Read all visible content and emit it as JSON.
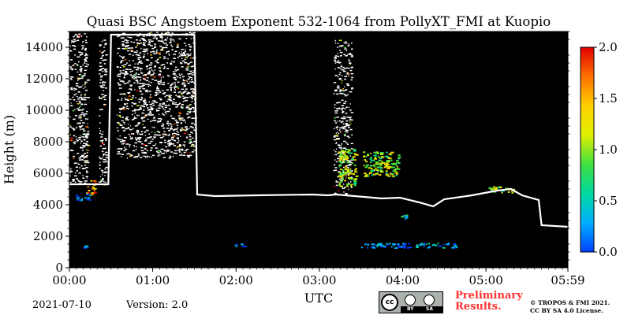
{
  "chart_data": {
    "type": "heatmap",
    "title": "Quasi BSC Angstoem Exponent 532-1064 from PollyXT_FMI at Kuopio",
    "xlabel": "UTC",
    "ylabel": "Height (m)",
    "xlim": [
      "00:00",
      "05:59"
    ],
    "xlim_minutes": [
      0,
      359
    ],
    "xticks": [
      "00:00",
      "01:00",
      "02:00",
      "03:00",
      "04:00",
      "05:00",
      "05:59"
    ],
    "ylim": [
      0,
      15000
    ],
    "yticks": [
      "0",
      "2000",
      "4000",
      "6000",
      "8000",
      "10000",
      "12000",
      "14000"
    ],
    "colorbar": {
      "range": [
        0.0,
        2.0
      ],
      "ticks": [
        "0.0",
        "0.5",
        "1.0",
        "1.5",
        "2.0"
      ],
      "colormap": [
        "#0040ff",
        "#00b0ff",
        "#00d8a0",
        "#40e040",
        "#e0f000",
        "#ffd000",
        "#ff7000",
        "#e00000"
      ]
    },
    "background_color": "#000000",
    "cloud_color": "#ffffff",
    "cloud_top_profile": [
      {
        "t": 0,
        "h": 5300
      },
      {
        "t": 28,
        "h": 5300
      },
      {
        "t": 30,
        "h": 14800
      },
      {
        "t": 90,
        "h": 14800
      },
      {
        "t": 92,
        "h": 4650
      },
      {
        "t": 105,
        "h": 4550
      },
      {
        "t": 135,
        "h": 4600
      },
      {
        "t": 175,
        "h": 4650
      },
      {
        "t": 186,
        "h": 4600
      },
      {
        "t": 192,
        "h": 4650
      },
      {
        "t": 212,
        "h": 4500
      },
      {
        "t": 225,
        "h": 4400
      },
      {
        "t": 238,
        "h": 4450
      },
      {
        "t": 252,
        "h": 4150
      },
      {
        "t": 262,
        "h": 3900
      },
      {
        "t": 270,
        "h": 4350
      },
      {
        "t": 290,
        "h": 4600
      },
      {
        "t": 308,
        "h": 4900
      },
      {
        "t": 318,
        "h": 5000
      },
      {
        "t": 326,
        "h": 4600
      },
      {
        "t": 338,
        "h": 4300
      },
      {
        "t": 340,
        "h": 2700
      },
      {
        "t": 359,
        "h": 2600
      }
    ],
    "cirrus_columns": [
      {
        "t0": 0,
        "t1": 13,
        "h0": 5300,
        "h1": 14900
      },
      {
        "t0": 21,
        "t1": 26,
        "h0": 5300,
        "h1": 14500
      },
      {
        "t0": 34,
        "t1": 90,
        "h0": 7000,
        "h1": 15000
      },
      {
        "t0": 190,
        "t1": 203,
        "h0": 4700,
        "h1": 14500
      }
    ],
    "colored_patches": [
      {
        "t0": 193,
        "t1": 206,
        "h0": 5200,
        "h1": 7600,
        "value": 1.1
      },
      {
        "t0": 211,
        "t1": 237,
        "h0": 5800,
        "h1": 7400,
        "value": 1.0
      },
      {
        "t0": 12,
        "t1": 18,
        "h0": 4700,
        "h1": 5700,
        "value": 1.6
      },
      {
        "t0": 4,
        "t1": 15,
        "h0": 4300,
        "h1": 4700,
        "value": 0.3
      },
      {
        "t0": 238,
        "t1": 242,
        "h0": 3100,
        "h1": 3400,
        "value": 0.5
      },
      {
        "t0": 210,
        "t1": 280,
        "h0": 1300,
        "h1": 1600,
        "value": 0.2
      },
      {
        "t0": 118,
        "t1": 126,
        "h0": 1400,
        "h1": 1600,
        "value": 0.15
      },
      {
        "t0": 10,
        "t1": 13,
        "h0": 1200,
        "h1": 1500,
        "value": 0.2
      },
      {
        "t0": 300,
        "t1": 320,
        "h0": 4800,
        "h1": 5200,
        "value": 1.0
      }
    ]
  },
  "footer": {
    "date": "2021-07-10",
    "version": "Version: 2.0",
    "license_badge": [
      "BY",
      "SA"
    ],
    "preliminary_line1": "Preliminary",
    "preliminary_line2": "Results.",
    "copyright_line1": "© TROPOS & FMI 2021.",
    "copyright_line2": "CC BY SA 4.0 License."
  }
}
